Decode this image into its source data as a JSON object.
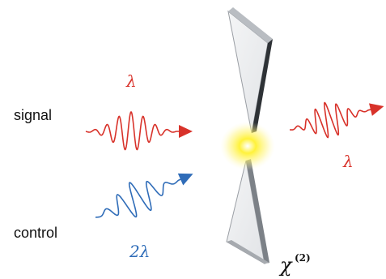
{
  "labels": {
    "signal": "signal",
    "control": "control",
    "signal_in_wavelength": "λ",
    "signal_out_wavelength": "λ",
    "control_wavelength": "2λ",
    "medium": "χ",
    "medium_order": "(2)"
  },
  "colors": {
    "signal": "#d8322a",
    "control": "#2f6cb8",
    "glow": "#fff23a",
    "crystal_face": "#eef0f2",
    "crystal_edge": "#555a60"
  },
  "icons": {
    "signal_in": "red-wave-packet-arrow",
    "signal_out": "red-wave-packet-arrow",
    "control_in": "blue-wave-packet-arrow",
    "crystal": "bowtie-crystal",
    "focus": "glow-spot"
  }
}
